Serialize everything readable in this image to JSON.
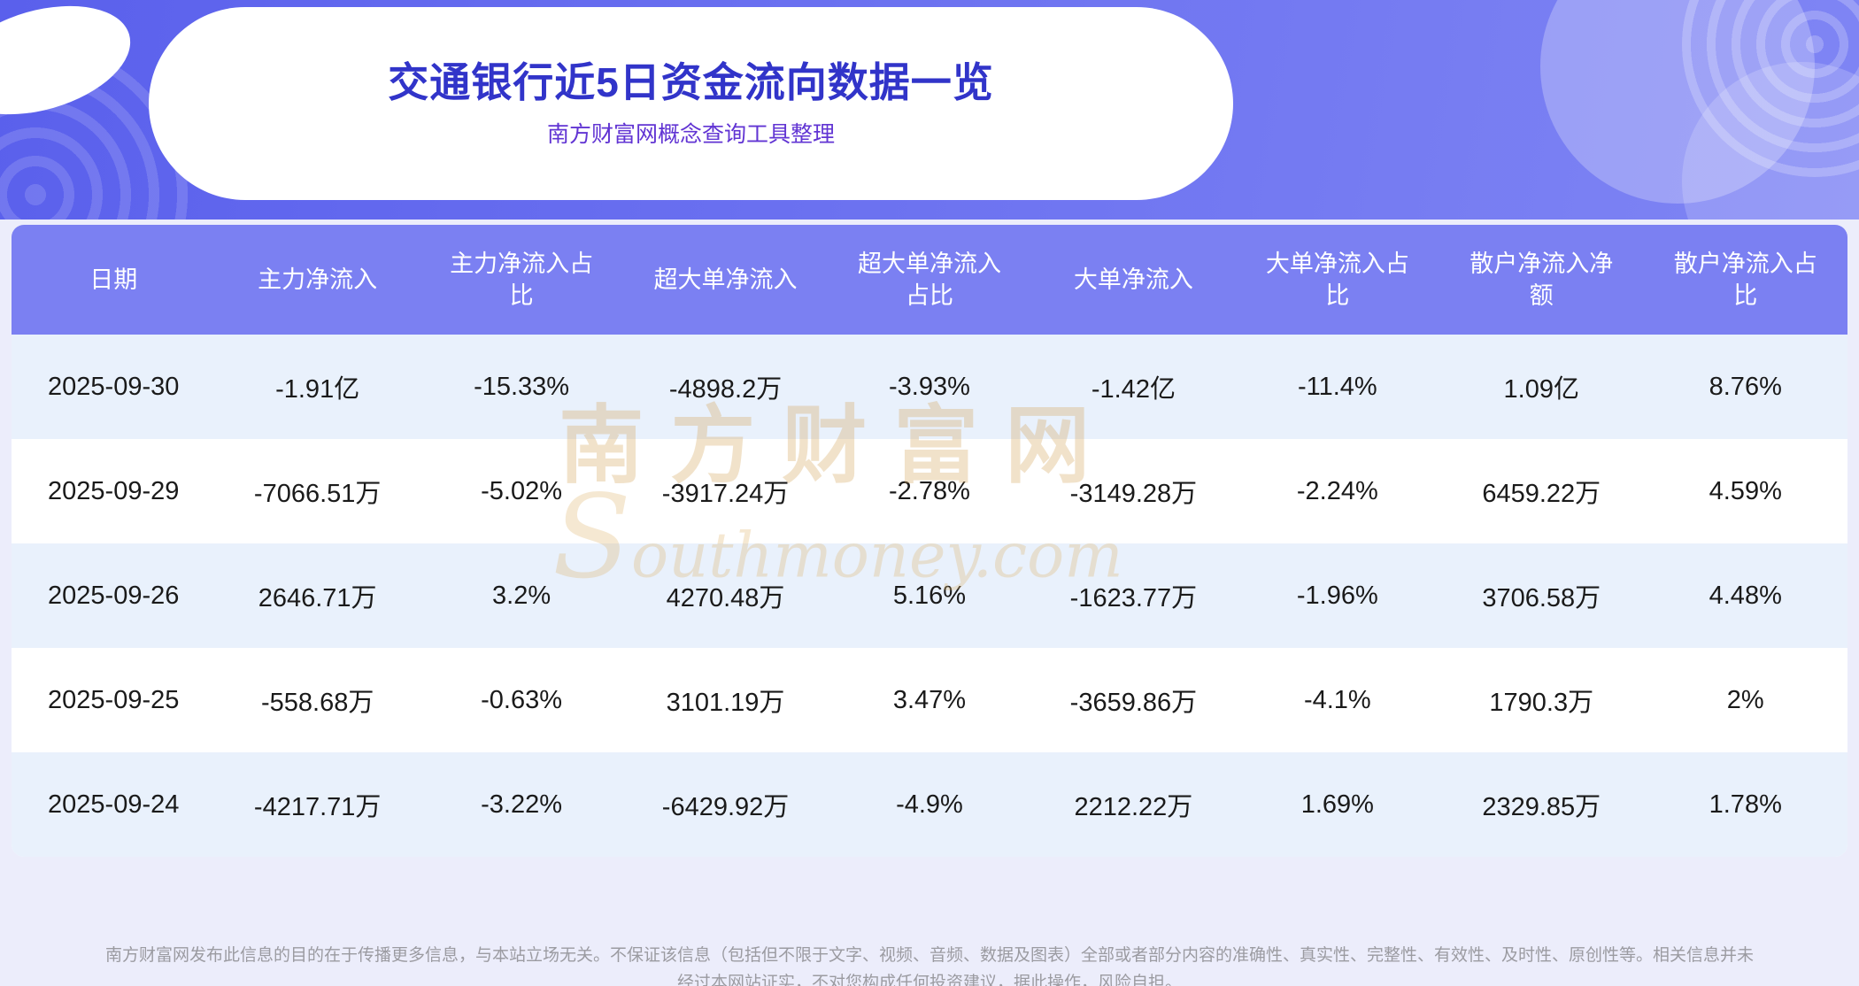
{
  "page": {
    "title": "交通银行近5日资金流向数据一览",
    "subtitle": "南方财富网概念查询工具整理"
  },
  "watermark": {
    "text_cn": "南方财富网",
    "text_en": "Southmoney.com"
  },
  "chart_data": {
    "type": "table",
    "title": "交通银行近5日资金流向数据一览",
    "columns": [
      "日期",
      "主力净流入",
      "主力净流入占比",
      "超大单净流入",
      "超大单净流入占比",
      "大单净流入",
      "大单净流入占比",
      "散户净流入净额",
      "散户净流入占比"
    ],
    "rows": [
      [
        "2025-09-30",
        "-1.91亿",
        "-15.33%",
        "-4898.2万",
        "-3.93%",
        "-1.42亿",
        "-11.4%",
        "1.09亿",
        "8.76%"
      ],
      [
        "2025-09-29",
        "-7066.51万",
        "-5.02%",
        "-3917.24万",
        "-2.78%",
        "-3149.28万",
        "-2.24%",
        "6459.22万",
        "4.59%"
      ],
      [
        "2025-09-26",
        "2646.71万",
        "3.2%",
        "4270.48万",
        "5.16%",
        "-1623.77万",
        "-1.96%",
        "3706.58万",
        "4.48%"
      ],
      [
        "2025-09-25",
        "-558.68万",
        "-0.63%",
        "3101.19万",
        "3.47%",
        "-3659.86万",
        "-4.1%",
        "1790.3万",
        "2%"
      ],
      [
        "2025-09-24",
        "-4217.71万",
        "-3.22%",
        "-6429.92万",
        "-4.9%",
        "2212.22万",
        "1.69%",
        "2329.85万",
        "1.78%"
      ]
    ]
  },
  "footer": {
    "disclaimer": "南方财富网发布此信息的目的在于传播更多信息，与本站立场无关。不保证该信息（包括但不限于文字、视频、音频、数据及图表）全部或者部分内容的准确性、真实性、完整性、有效性、及时性、原创性等。相关信息并未经过本网站证实，不对您构成任何投资建议，据此操作，风险自担。"
  },
  "colors": {
    "hero_gradient_start": "#5a60ec",
    "hero_gradient_end": "#7f85f4",
    "title_text": "#3134c9",
    "subtitle_text": "#6134d3",
    "table_header_bg": "#7b80f2",
    "table_row_alt_bg": "#e9f1fc",
    "page_bg": "#ecedfb",
    "watermark_gold": "#d5a45a",
    "footer_text": "#9b9ba1"
  }
}
